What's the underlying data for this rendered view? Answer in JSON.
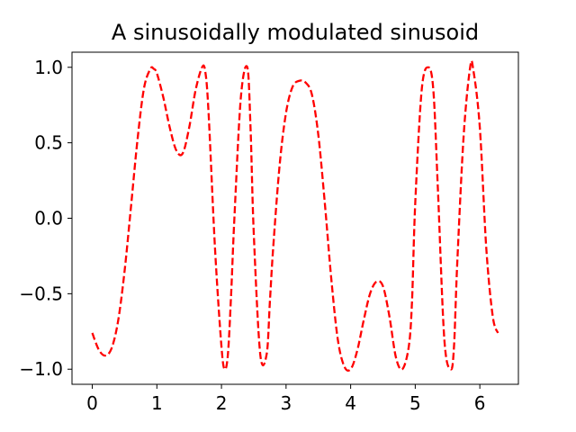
{
  "chart_data": {
    "type": "line",
    "title": "A sinusoidally modulated sinusoid",
    "xlabel": "",
    "ylabel": "",
    "xlim": [
      -0.314,
      6.597
    ],
    "ylim": [
      -1.1,
      1.1
    ],
    "xticks": [
      0,
      1,
      2,
      3,
      4,
      5,
      6
    ],
    "xtick_labels": [
      "0",
      "1",
      "2",
      "3",
      "4",
      "5",
      "6"
    ],
    "yticks": [
      -1.0,
      -0.5,
      0.0,
      0.5,
      1.0
    ],
    "ytick_labels": [
      "−1.0",
      "−0.5",
      "0.0",
      "0.5",
      "1.0"
    ],
    "grid": false,
    "legend": null,
    "series": [
      {
        "color": "#ff0000",
        "linestyle": "dashed",
        "x": [
          0.0,
          0.1,
          0.2,
          0.3,
          0.4,
          0.5,
          0.6,
          0.7,
          0.8,
          0.9,
          0.95,
          1.0,
          1.1,
          1.2,
          1.3,
          1.4,
          1.5,
          1.6,
          1.7,
          1.75,
          1.8,
          1.9,
          2.0,
          2.05,
          2.1,
          2.15,
          2.2,
          2.3,
          2.4,
          2.45,
          2.5,
          2.6,
          2.7,
          2.75,
          2.8,
          2.9,
          3.0,
          3.1,
          3.2,
          3.3,
          3.4,
          3.5,
          3.6,
          3.7,
          3.8,
          3.9,
          4.0,
          4.1,
          4.2,
          4.3,
          4.4,
          4.5,
          4.6,
          4.7,
          4.8,
          4.9,
          4.95,
          5.0,
          5.1,
          5.2,
          5.28,
          5.35,
          5.45,
          5.55,
          5.6,
          5.65,
          5.75,
          5.85,
          5.9,
          6.0,
          6.1,
          6.2,
          6.28
        ],
        "y": [
          -0.76,
          -0.87,
          -0.91,
          -0.86,
          -0.68,
          -0.35,
          0.08,
          0.52,
          0.86,
          0.99,
          0.99,
          0.96,
          0.8,
          0.6,
          0.45,
          0.43,
          0.6,
          0.85,
          1.0,
          0.97,
          0.7,
          -0.2,
          -0.85,
          -1.0,
          -0.9,
          -0.5,
          0.0,
          0.8,
          1.0,
          0.6,
          -0.1,
          -0.9,
          -0.9,
          -0.55,
          -0.2,
          0.35,
          0.7,
          0.87,
          0.91,
          0.9,
          0.82,
          0.55,
          0.1,
          -0.4,
          -0.8,
          -0.98,
          -1.0,
          -0.88,
          -0.68,
          -0.5,
          -0.42,
          -0.45,
          -0.65,
          -0.92,
          -1.0,
          -0.85,
          -0.55,
          0.1,
          0.85,
          1.0,
          0.85,
          0.2,
          -0.8,
          -1.0,
          -0.85,
          -0.3,
          0.55,
          1.0,
          0.98,
          0.6,
          -0.2,
          -0.65,
          -0.76
        ]
      }
    ]
  }
}
